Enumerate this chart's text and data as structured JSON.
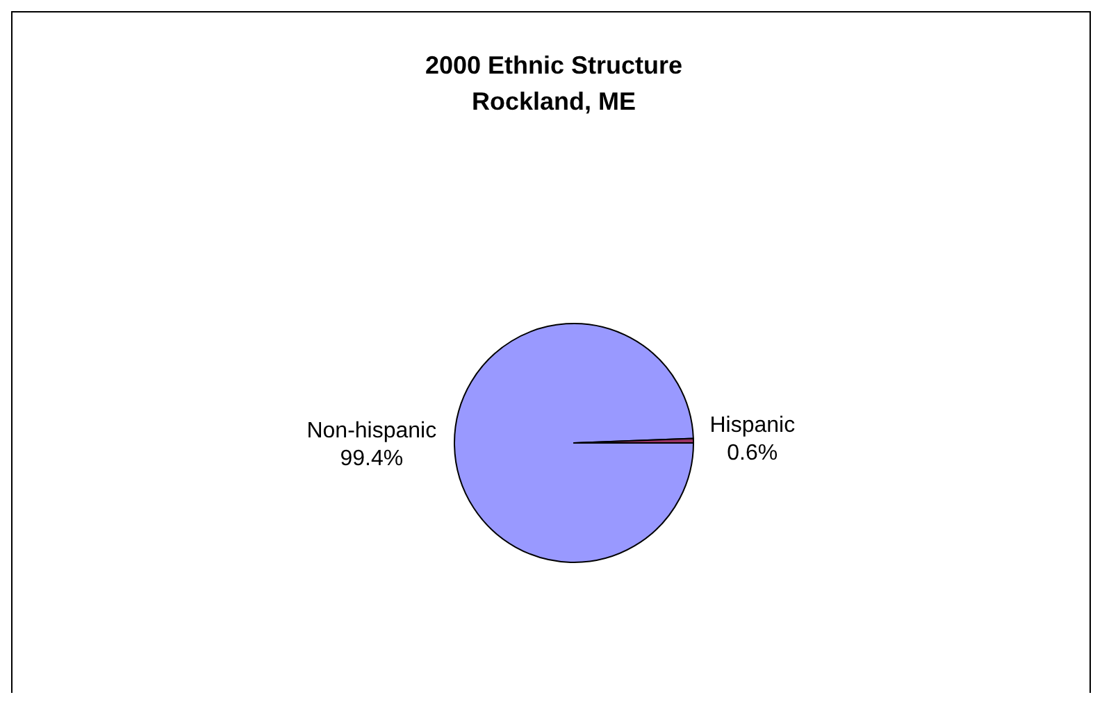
{
  "chart_data": {
    "type": "pie",
    "title": "2000 Ethnic Structure\nRockland, ME",
    "categories": [
      "Non-hispanic",
      "Hispanic"
    ],
    "values": [
      99.4,
      0.6
    ],
    "colors": [
      "#9999ff",
      "#993366"
    ],
    "value_labels": [
      "99.4%",
      "0.6%"
    ]
  }
}
